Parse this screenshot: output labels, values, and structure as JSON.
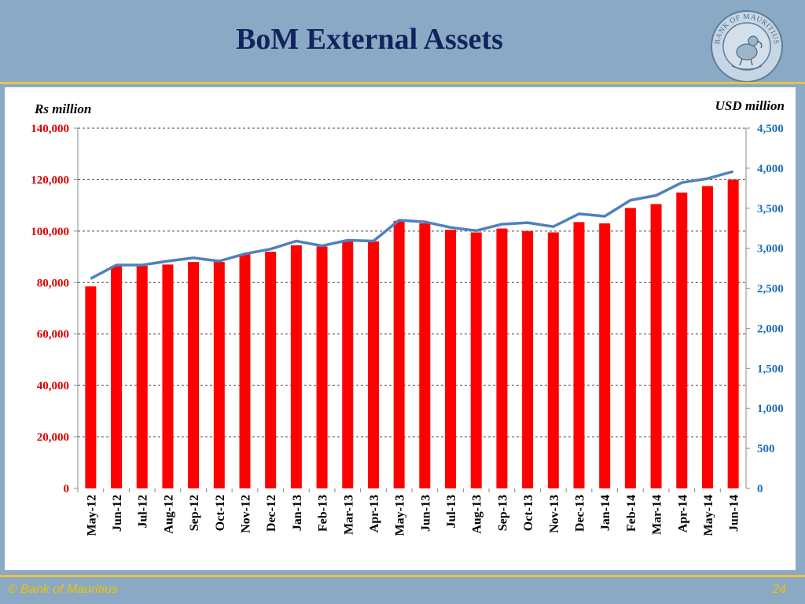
{
  "slide": {
    "title": "BoM External Assets",
    "footer_left": "© Bank of Mauritius",
    "page_number": "24",
    "seal_text": "BANK OF MAURITIUS"
  },
  "colors": {
    "background": "#8aa9c4",
    "title": "#12235e",
    "rule": "#e9c245",
    "footer": "#f2c200",
    "bars": "#ff0000",
    "line": "#4f81bd",
    "left_axis_text": "#e00000",
    "right_axis_text": "#1f6fb4"
  },
  "chart_data": {
    "type": "bar",
    "title": "BoM External Assets",
    "ylabel": "Rs million",
    "y2label": "USD million",
    "ylim": [
      0,
      140000
    ],
    "y2lim": [
      0,
      4500
    ],
    "yticks": [
      "0",
      "20,000",
      "40,000",
      "60,000",
      "80,000",
      "100,000",
      "120,000",
      "140,000"
    ],
    "y2ticks": [
      "0",
      "500",
      "1,000",
      "1,500",
      "2,000",
      "2,500",
      "3,000",
      "3,500",
      "4,000",
      "4,500"
    ],
    "grid": true,
    "categories": [
      "May-12",
      "Jun-12",
      "Jul-12",
      "Aug-12",
      "Sep-12",
      "Oct-12",
      "Nov-12",
      "Dec-12",
      "Jan-13",
      "Feb-13",
      "Mar-13",
      "Apr-13",
      "May-13",
      "Jun-13",
      "Jul-13",
      "Aug-13",
      "Sep-13",
      "Oct-13",
      "Nov-13",
      "Dec-13",
      "Jan-14",
      "Feb-14",
      "Mar-14",
      "Apr-14",
      "May-14",
      "Jun-14"
    ],
    "series": [
      {
        "axis": "left",
        "kind": "bar",
        "values": [
          78500,
          86500,
          86500,
          87000,
          88000,
          88000,
          91000,
          92000,
          94500,
          94000,
          96000,
          96000,
          104000,
          103000,
          100500,
          99500,
          101000,
          100000,
          99500,
          103500,
          103000,
          109000,
          110500,
          115000,
          117500,
          120000
        ]
      },
      {
        "axis": "right",
        "kind": "line",
        "values": [
          2620,
          2790,
          2790,
          2840,
          2880,
          2840,
          2930,
          2990,
          3090,
          3030,
          3100,
          3090,
          3350,
          3330,
          3260,
          3220,
          3300,
          3320,
          3270,
          3430,
          3400,
          3600,
          3660,
          3820,
          3870,
          3960
        ]
      }
    ]
  }
}
